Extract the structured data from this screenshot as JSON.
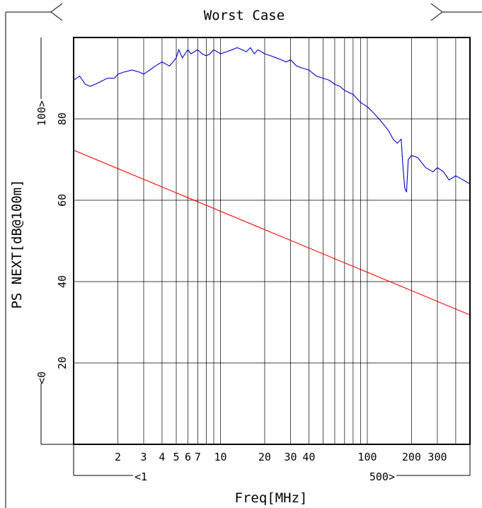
{
  "chart_data": {
    "type": "line",
    "title": "Worst Case",
    "xlabel": "Freq[MHz]",
    "ylabel": "PS NEXT[dB@100m]",
    "x_scale": "log",
    "xlim": [
      1,
      500
    ],
    "ylim": [
      0,
      100
    ],
    "grid": true,
    "x_ticks": [
      2,
      3,
      4,
      5,
      6,
      7,
      10,
      20,
      30,
      40,
      100,
      200,
      300
    ],
    "x_tick_labels": [
      "2",
      "3",
      "4",
      "5",
      "6",
      "7",
      "10",
      "20",
      "30",
      "40",
      "100",
      "200",
      "300"
    ],
    "y_ticks": [
      20,
      40,
      60,
      80
    ],
    "y_tick_labels": [
      "20",
      "40",
      "60",
      "80"
    ],
    "x_range_start_label": "<1",
    "x_range_end_label": "500>",
    "y_range_start_label": "<0",
    "y_range_end_label": "100>",
    "series": [
      {
        "color": "#0000cc",
        "x": [
          1,
          1.1,
          1.2,
          1.3,
          1.4,
          1.5,
          1.7,
          1.9,
          2,
          2.2,
          2.5,
          2.8,
          3,
          3.3,
          3.6,
          4,
          4.5,
          5,
          5.2,
          5.5,
          6,
          6.3,
          7,
          7.5,
          8,
          8.5,
          9,
          10,
          11,
          12,
          13,
          14,
          15,
          16,
          17,
          18,
          19,
          20,
          22,
          24,
          26,
          28,
          30,
          33,
          36,
          40,
          45,
          50,
          55,
          60,
          65,
          70,
          80,
          90,
          100,
          110,
          120,
          130,
          140,
          150,
          160,
          170,
          175,
          180,
          185,
          190,
          200,
          220,
          250,
          280,
          300,
          330,
          360,
          400,
          450,
          500
        ],
        "y": [
          89.5,
          90.5,
          88.5,
          88,
          88.5,
          89,
          90,
          90,
          91,
          91.5,
          92,
          91.5,
          91,
          92,
          93,
          94,
          93,
          95,
          97,
          95,
          97,
          96,
          97,
          96,
          95.5,
          96,
          97,
          96,
          96.5,
          97,
          97.5,
          97,
          96.5,
          97.5,
          96,
          97,
          96.5,
          96,
          95.5,
          95,
          94.5,
          94,
          94.5,
          93,
          92.5,
          92,
          90.5,
          90,
          89.5,
          88.5,
          88,
          87,
          86,
          84,
          83,
          81.5,
          80,
          78.5,
          77,
          75,
          74,
          75,
          68,
          63,
          62,
          70,
          71,
          70.5,
          68,
          67,
          68,
          67,
          65,
          66,
          65,
          64
        ]
      },
      {
        "color": "#ff0000",
        "x": [
          1,
          500
        ],
        "y": [
          72.3,
          31.8
        ]
      }
    ]
  }
}
